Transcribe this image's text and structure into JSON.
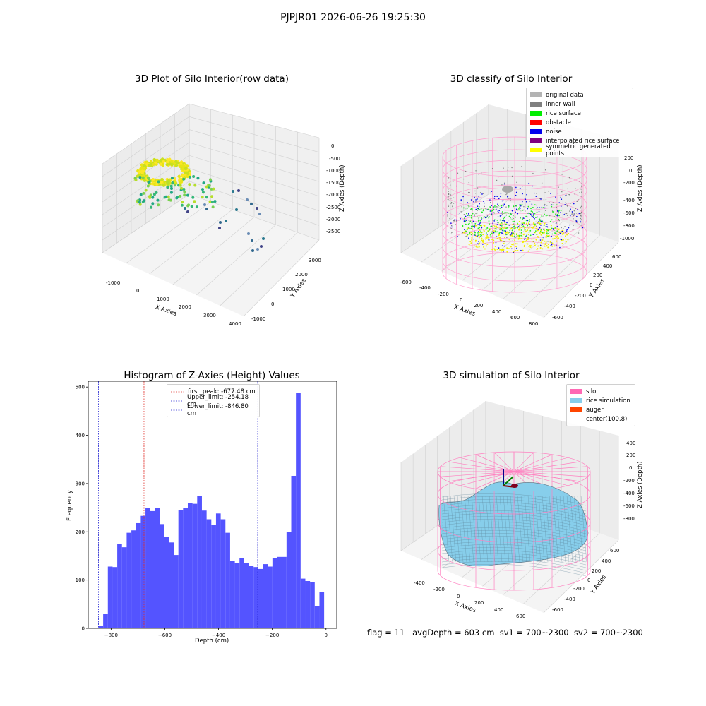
{
  "figure_title": "PJPJR01 2026-06-26 19:25:30",
  "status_line": "flag = 11   avgDepth = 603 cm  sv1 = 700~2300  sv2 = 700~2300",
  "colors": {
    "hist_bar": "#4b4bff",
    "peak_line": "#e0302a",
    "limit_line": "#1f1fd0"
  },
  "chart_data": [
    {
      "type": "scatter",
      "projection": "3d",
      "title": "3D Plot of Silo Interior(row data)",
      "xlabel": "X Axies",
      "ylabel": "Y Axies",
      "zlabel": "Z Axies (Depth)",
      "x_ticks": [
        "-1000",
        "0",
        "1000",
        "2000",
        "3000",
        "4000"
      ],
      "y_ticks": [
        "-1000",
        "0",
        "1000",
        "2000",
        "3000"
      ],
      "z_ticks": [
        "0",
        "-500",
        "-1000",
        "-1500",
        "-2000",
        "-2500",
        "-3000",
        "-3500"
      ],
      "colormap": "viridis"
    },
    {
      "type": "scatter",
      "projection": "3d",
      "title": "3D classify of Silo Interior",
      "xlabel": "X Axies",
      "ylabel": "Y Axies",
      "zlabel": "Z Axies (Depth)",
      "x_ticks": [
        "-600",
        "-400",
        "-200",
        "0",
        "200",
        "400",
        "600",
        "800"
      ],
      "y_ticks": [
        "-600",
        "-400",
        "-200",
        "0",
        "200",
        "400",
        "600"
      ],
      "z_ticks": [
        "200",
        "0",
        "-200",
        "-400",
        "-600",
        "-800",
        "-1000"
      ],
      "legend_position": "upper-right",
      "legend": [
        {
          "label": "original data",
          "color": "#b3b3b3"
        },
        {
          "label": "inner wall",
          "color": "#808080"
        },
        {
          "label": "rice surface",
          "color": "#00ee00"
        },
        {
          "label": "obstacle",
          "color": "#ff0000"
        },
        {
          "label": "noise",
          "color": "#0000ee"
        },
        {
          "label": "interpolated rice surface",
          "color": "#800080"
        },
        {
          "label": "symmetric generated points",
          "color": "#ffff00"
        }
      ]
    },
    {
      "type": "bar",
      "title": "Histogram of Z-Axies (Height) Values",
      "xlabel": "Depth (cm)",
      "ylabel": "Frequency",
      "xlim": [
        -885,
        40
      ],
      "ylim": [
        0,
        512
      ],
      "x_ticks": [
        -800,
        -600,
        -400,
        -200,
        0
      ],
      "y_ticks": [
        0,
        100,
        200,
        300,
        400,
        500
      ],
      "bins": {
        "start": -847,
        "width": 17.5,
        "values": [
          5,
          30,
          128,
          127,
          175,
          168,
          198,
          203,
          218,
          233,
          250,
          243,
          250,
          216,
          190,
          178,
          152,
          245,
          250,
          260,
          258,
          274,
          244,
          226,
          214,
          238,
          226,
          198,
          139,
          136,
          145,
          135,
          130,
          127,
          123,
          133,
          128,
          146,
          148,
          148,
          200,
          316,
          488,
          103,
          98,
          96,
          46,
          76
        ]
      },
      "vlines": [
        {
          "x": -677.48,
          "kind": "peak",
          "label": "first_peak: -677.48 cm"
        },
        {
          "x": -254.18,
          "kind": "limit",
          "label": "Upper_limit: -254.18 cm"
        },
        {
          "x": -846.8,
          "kind": "limit",
          "label": "Lower_limit: -846.80 cm"
        }
      ],
      "legend_position": "upper-center"
    },
    {
      "type": "area",
      "projection": "3d",
      "title": "3D simulation of Silo Interior",
      "xlabel": "X Axies",
      "ylabel": "Y Axies",
      "zlabel": "Z Axies (Depth)",
      "x_ticks": [
        "-400",
        "-200",
        "0",
        "200",
        "400",
        "600"
      ],
      "y_ticks": [
        "-600",
        "-400",
        "-200",
        "0",
        "200",
        "400",
        "600"
      ],
      "z_ticks": [
        "400",
        "200",
        "0",
        "-200",
        "-400",
        "-600",
        "-800"
      ],
      "legend_position": "upper-right",
      "legend": [
        {
          "label": "silo",
          "color": "#ff69b4"
        },
        {
          "label": "rice simulation",
          "color": "#87ceeb"
        },
        {
          "label": "auger",
          "color": "#ff4500"
        },
        {
          "label": "center(100,8)",
          "color": "#ffffff"
        }
      ]
    }
  ]
}
